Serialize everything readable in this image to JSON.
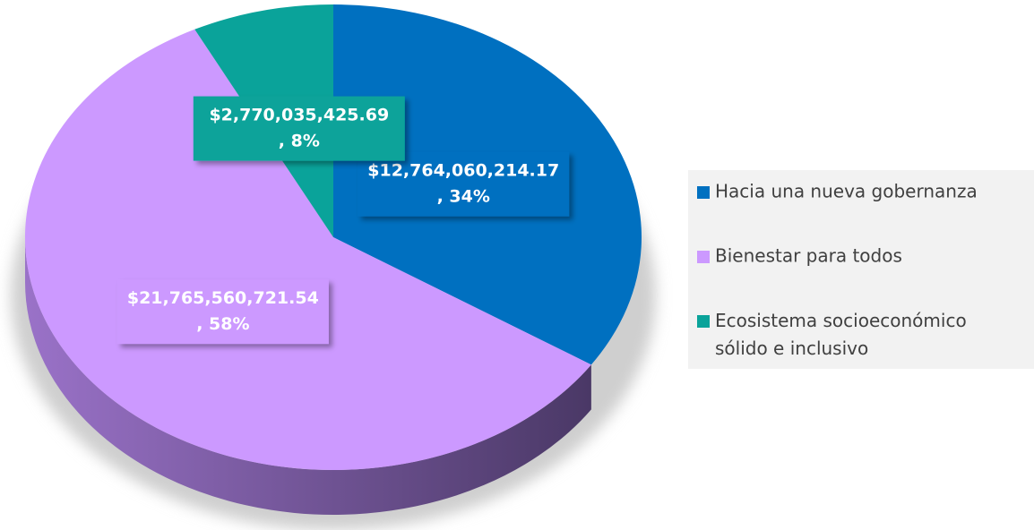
{
  "chart_data": {
    "type": "pie",
    "categories": [
      "Hacia una nueva gobernanza",
      "Bienestar para todos",
      "Ecosistema socioeconómico sólido e inclusivo"
    ],
    "values": [
      12764060214.17,
      21765560721.54,
      2770035425.69
    ],
    "value_labels": [
      "$12,764,060,214.17, 34%",
      "$21,765,560,721.54, 58%",
      "$2,770,035,425.69, 8%"
    ],
    "colors": [
      "#0070c0",
      "#cc99ff",
      "#0aa39a"
    ],
    "legend": "right"
  }
}
